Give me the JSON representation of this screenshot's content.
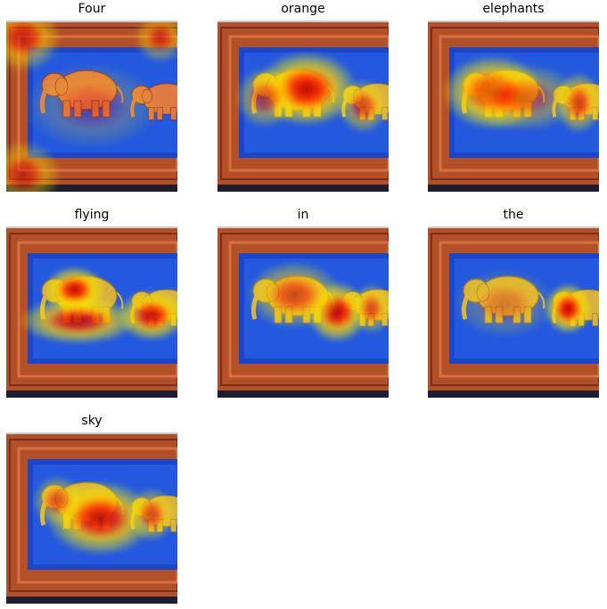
{
  "panels": [
    {
      "word": "Four",
      "heat": [
        [
          0.1,
          0.1,
          0.22,
          0.2,
          0.6
        ],
        [
          0.9,
          0.1,
          0.15,
          0.15,
          0.5
        ],
        [
          0.1,
          0.9,
          0.22,
          0.2,
          0.5
        ],
        [
          0.5,
          0.5,
          0.4,
          0.25,
          0.25
        ]
      ]
    },
    {
      "word": "orange",
      "heat": [
        [
          0.52,
          0.4,
          0.3,
          0.22,
          0.95
        ],
        [
          0.28,
          0.45,
          0.18,
          0.18,
          0.55
        ],
        [
          0.85,
          0.5,
          0.15,
          0.16,
          0.6
        ]
      ]
    },
    {
      "word": "elephants",
      "heat": [
        [
          0.38,
          0.42,
          0.3,
          0.22,
          0.9
        ],
        [
          0.88,
          0.48,
          0.14,
          0.18,
          0.7
        ],
        [
          0.55,
          0.45,
          0.35,
          0.2,
          0.5
        ]
      ]
    },
    {
      "word": "flying",
      "heat": [
        [
          0.4,
          0.37,
          0.18,
          0.14,
          0.95
        ],
        [
          0.42,
          0.55,
          0.35,
          0.14,
          0.85
        ],
        [
          0.85,
          0.52,
          0.2,
          0.15,
          0.9
        ]
      ]
    },
    {
      "word": "in",
      "heat": [
        [
          0.7,
          0.5,
          0.18,
          0.18,
          0.95
        ],
        [
          0.45,
          0.4,
          0.28,
          0.2,
          0.6
        ],
        [
          0.9,
          0.48,
          0.12,
          0.15,
          0.6
        ]
      ]
    },
    {
      "word": "the",
      "heat": [
        [
          0.82,
          0.48,
          0.14,
          0.15,
          1.0
        ],
        [
          0.45,
          0.45,
          0.3,
          0.2,
          0.3
        ]
      ]
    },
    {
      "word": "sky",
      "heat": [
        [
          0.55,
          0.5,
          0.32,
          0.22,
          0.9
        ],
        [
          0.3,
          0.4,
          0.15,
          0.15,
          0.55
        ],
        [
          0.85,
          0.48,
          0.14,
          0.16,
          0.6
        ]
      ]
    }
  ]
}
